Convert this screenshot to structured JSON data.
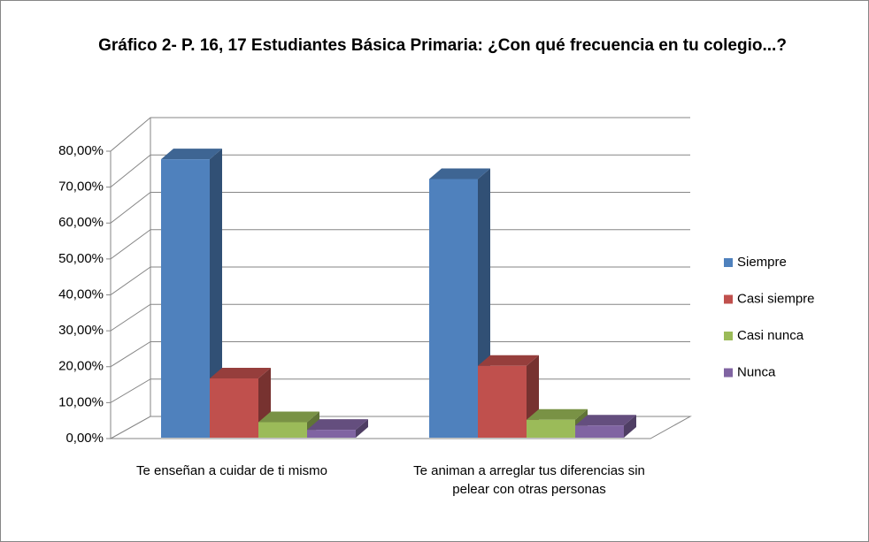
{
  "chart_data": {
    "type": "bar3d",
    "title": "Gráfico 2- P. 16, 17 Estudiantes Básica Primaria: ¿Con qué frecuencia en tu colegio...?",
    "categories": [
      "Te enseñan a cuidar de ti mismo",
      "Te animan a arreglar tus diferencias sin pelear con otras personas"
    ],
    "series": [
      {
        "name": "Siempre",
        "color": "#4f81bd",
        "values": [
          77.5,
          72
        ]
      },
      {
        "name": "Casi siempre",
        "color": "#c0504d",
        "values": [
          16.5,
          20
        ]
      },
      {
        "name": "Casi nunca",
        "color": "#9bbb59",
        "values": [
          4.3,
          5
        ]
      },
      {
        "name": "Nunca",
        "color": "#8064a2",
        "values": [
          2.2,
          3.4
        ]
      }
    ],
    "ylim": [
      0,
      80
    ],
    "yticks": [
      {
        "value": 0,
        "label": "0,00%"
      },
      {
        "value": 10,
        "label": "10,00%"
      },
      {
        "value": 20,
        "label": "20,00%"
      },
      {
        "value": 30,
        "label": "30,00%"
      },
      {
        "value": 40,
        "label": "40,00%"
      },
      {
        "value": 50,
        "label": "50,00%"
      },
      {
        "value": 60,
        "label": "60,00%"
      },
      {
        "value": 70,
        "label": "70,00%"
      },
      {
        "value": 80,
        "label": "80,00%"
      }
    ],
    "grid": true,
    "legend": "right"
  }
}
